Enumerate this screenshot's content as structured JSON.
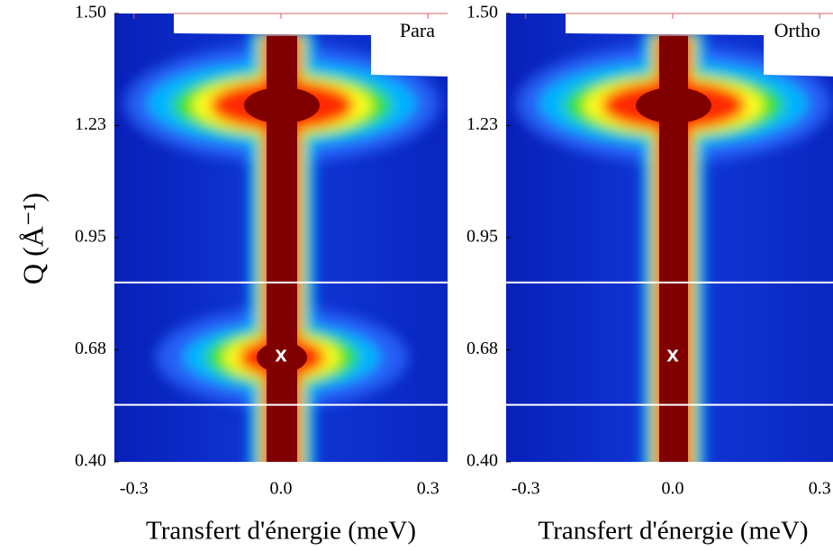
{
  "chart_data": [
    {
      "type": "heatmap",
      "annotation": "Para",
      "ylabel": "Q (Å⁻¹)",
      "xlabel": "Transfert d'énergie (meV)",
      "xlim": [
        -0.34,
        0.34
      ],
      "ylim": [
        0.4,
        1.5
      ],
      "xticks": [
        -0.3,
        {
          "value": 0,
          "label": "0.0"
        },
        0.3
      ],
      "yticks": [
        {
          "value": 0.4,
          "label": "0.40"
        },
        {
          "value": 0.675,
          "label": "0.68"
        },
        {
          "value": 0.95,
          "label": "0.95"
        },
        {
          "value": 1.225,
          "label": "1.23"
        },
        {
          "value": 1.5,
          "label": "1.50"
        }
      ],
      "hlines": [
        0.84,
        0.54
      ],
      "marker": {
        "label": "x",
        "x": 0,
        "y": 0.66
      }
    },
    {
      "type": "heatmap",
      "annotation": "Ortho",
      "xlabel": "Transfert d'énergie (meV)",
      "xlim": [
        -0.34,
        0.34
      ],
      "ylim": [
        0.4,
        1.5
      ],
      "xticks": [
        -0.3,
        {
          "value": 0,
          "label": "0.0"
        },
        0.3
      ],
      "yticks": [
        {
          "value": 0.4,
          "label": "0.40"
        },
        {
          "value": 0.675,
          "label": "0.68"
        },
        {
          "value": 0.95,
          "label": "0.95"
        },
        {
          "value": 1.225,
          "label": "1.23"
        },
        {
          "value": 1.5,
          "label": "1.50"
        }
      ],
      "hlines": [
        0.84,
        0.54
      ],
      "marker": {
        "label": "x",
        "x": 0,
        "y": 0.66
      }
    }
  ]
}
